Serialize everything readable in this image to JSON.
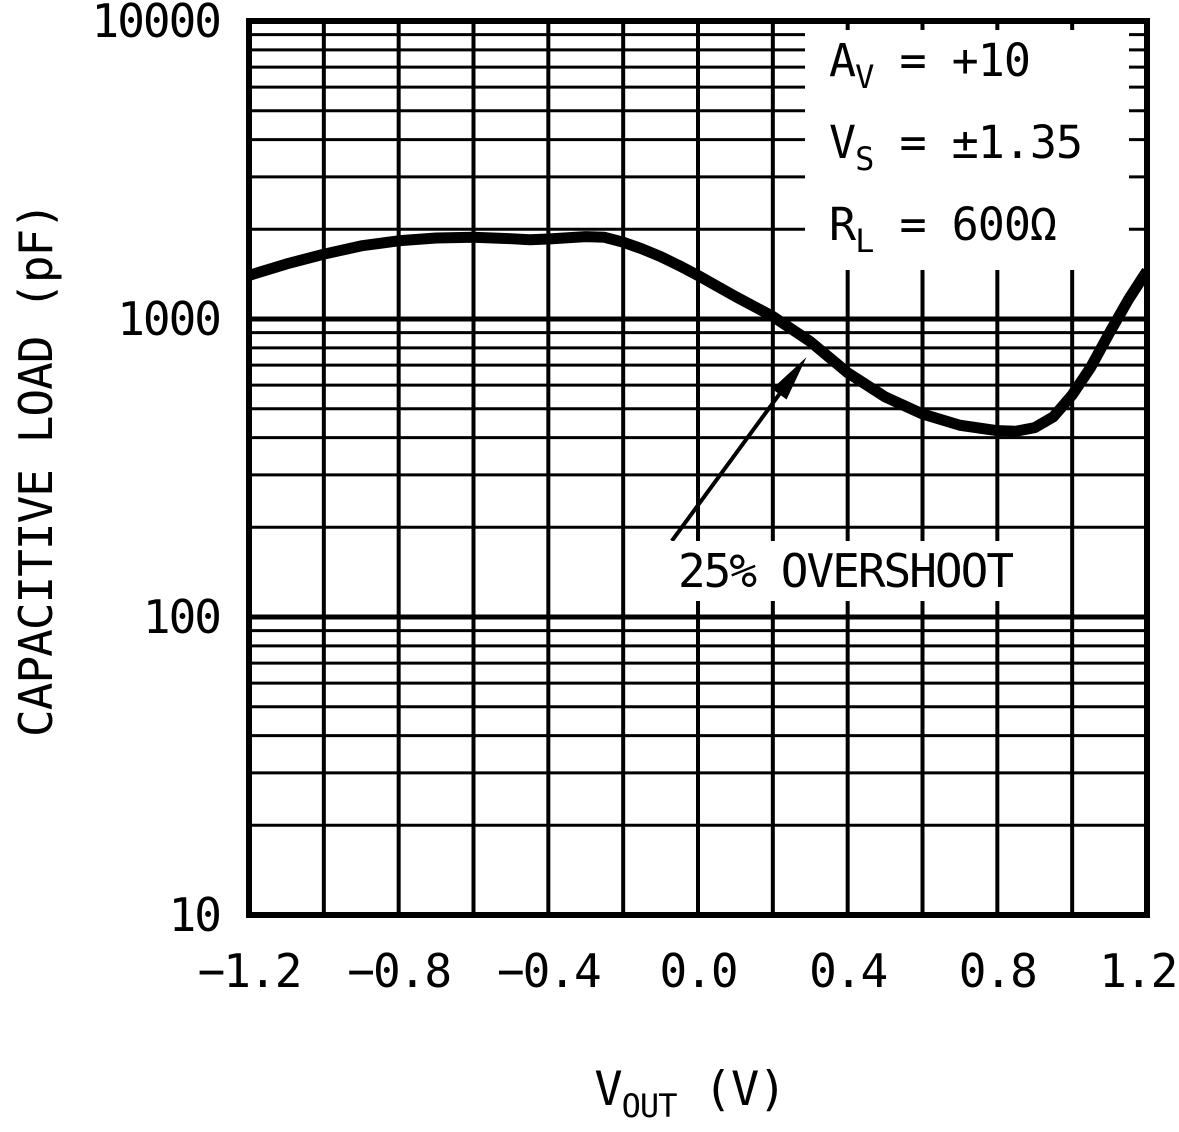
{
  "chart_data": {
    "type": "line",
    "title": "",
    "ylabel": "CAPACITIVE LOAD (pF)",
    "xlabel": {
      "base": "V",
      "sub": "OUT",
      "rest": " (V)"
    },
    "x_axis": {
      "min": -1.2,
      "max": 1.2,
      "grid_step": 0.2,
      "tick_values": [
        -1.2,
        -0.8,
        -0.4,
        0.0,
        0.4,
        0.8,
        1.2
      ],
      "tick_labels": [
        "−1.2",
        "−0.8",
        "−0.4",
        "0.0",
        "0.4",
        "0.8",
        "1.2"
      ]
    },
    "y_axis": {
      "scale": "log",
      "min": 10,
      "max": 10000,
      "tick_values": [
        10000,
        1000,
        100,
        10
      ],
      "tick_labels": [
        "10000",
        "1000",
        "100",
        "10"
      ],
      "grid": "log-minor-and-major"
    },
    "series": [
      {
        "name": "capacitive load for 25% overshoot",
        "points": [
          [
            -1.2,
            1400
          ],
          [
            -1.1,
            1530
          ],
          [
            -1.0,
            1650
          ],
          [
            -0.9,
            1760
          ],
          [
            -0.8,
            1830
          ],
          [
            -0.7,
            1870
          ],
          [
            -0.6,
            1880
          ],
          [
            -0.5,
            1860
          ],
          [
            -0.45,
            1845
          ],
          [
            -0.4,
            1855
          ],
          [
            -0.3,
            1890
          ],
          [
            -0.25,
            1880
          ],
          [
            -0.2,
            1810
          ],
          [
            -0.15,
            1720
          ],
          [
            -0.1,
            1620
          ],
          [
            -0.05,
            1510
          ],
          [
            0.0,
            1400
          ],
          [
            0.1,
            1190
          ],
          [
            0.2,
            1020
          ],
          [
            0.3,
            840
          ],
          [
            0.4,
            660
          ],
          [
            0.5,
            548
          ],
          [
            0.6,
            480
          ],
          [
            0.7,
            440
          ],
          [
            0.8,
            422
          ],
          [
            0.85,
            420
          ],
          [
            0.9,
            432
          ],
          [
            0.95,
            470
          ],
          [
            1.0,
            556
          ],
          [
            1.05,
            690
          ],
          [
            1.1,
            900
          ],
          [
            1.15,
            1160
          ],
          [
            1.2,
            1450
          ]
        ]
      }
    ],
    "legend": {
      "lines": [
        {
          "base": "A",
          "sub": "V",
          "rest": " = +10"
        },
        {
          "base": "V",
          "sub": "S",
          "rest": " = ±1.35"
        },
        {
          "base": "R",
          "sub": "L",
          "rest": " = 600Ω"
        }
      ]
    },
    "annotations": {
      "overshoot_label": "25% OVERSHOOT",
      "arrow": {
        "from_v": -0.07,
        "from_pf": 180,
        "to_v": 0.29,
        "to_pf": 745
      }
    },
    "colors": {
      "ink": "#000000",
      "background": "#ffffff"
    }
  }
}
